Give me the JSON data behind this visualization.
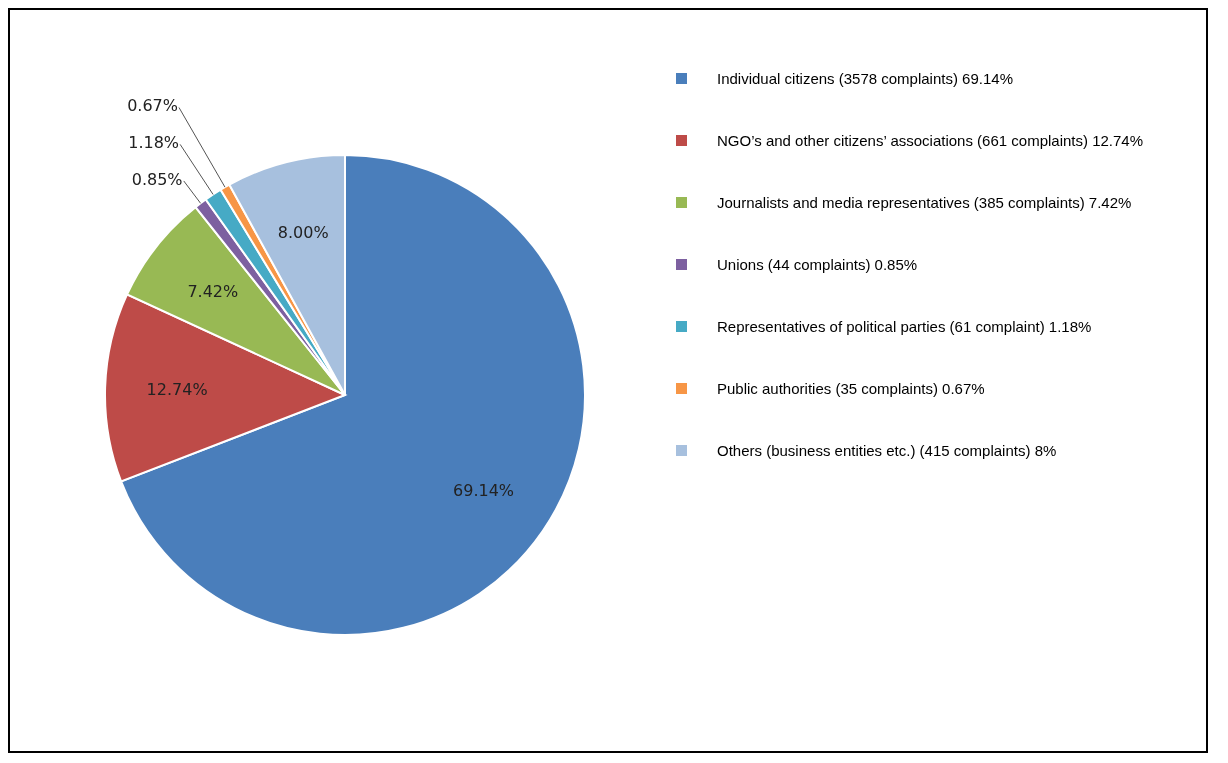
{
  "chart_data": {
    "type": "pie",
    "categories": [
      "Individual citizens (3578 complaints) 69.14%",
      "NGO’s and other citizens’ associations (661 complaints) 12.74%",
      "Journalists and media representatives (385 complaints) 7.42%",
      "Unions (44 complaints) 0.85%",
      "Representatives of political parties (61 complaint) 1.18%",
      "Public authorities (35 complaints) 0.67%",
      "Others (business entities etc.) (415 complaints) 8%"
    ],
    "values": [
      69.14,
      12.74,
      7.42,
      0.85,
      1.18,
      0.67,
      8.0
    ],
    "value_labels": [
      "69.14%",
      "12.74%",
      "7.42%",
      "0.85%",
      "1.18%",
      "0.67%",
      "8.00%"
    ],
    "colors": [
      "#4a7ebb",
      "#be4b48",
      "#98b954",
      "#7d60a0",
      "#46aac5",
      "#f79646",
      "#a7c0de"
    ],
    "legend": "right"
  }
}
